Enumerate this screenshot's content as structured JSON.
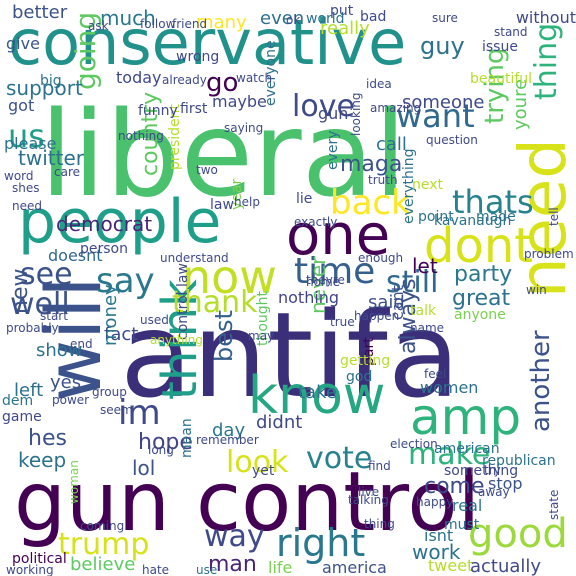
{
  "palette": {
    "dark_purple": "#440154",
    "indigo": "#3b528b",
    "teal": "#21918c",
    "green": "#5ec962",
    "yellow": "#fde725",
    "light_green": "#b5de2b"
  },
  "words": [
    {
      "text": "conservative",
      "color": "#21918c"
    },
    {
      "text": "liberal",
      "color": "#4ac16d"
    },
    {
      "text": "antifa",
      "color": "#3b2f7a"
    },
    {
      "text": "gun control",
      "color": "#440154"
    },
    {
      "text": "people",
      "color": "#1f9e89"
    },
    {
      "text": "will",
      "color": "#3b528b"
    },
    {
      "text": "one",
      "color": "#440154"
    },
    {
      "text": "dont",
      "color": "#d8e219"
    },
    {
      "text": "now",
      "color": "#c2df23"
    },
    {
      "text": "know",
      "color": "#26a784"
    },
    {
      "text": "think",
      "color": "#1f9e89"
    },
    {
      "text": "amp",
      "color": "#2eb37c"
    },
    {
      "text": "need",
      "color": "#d8e219"
    },
    {
      "text": "good",
      "color": "#9bd93c"
    },
    {
      "text": "right",
      "color": "#2a788e"
    },
    {
      "text": "time",
      "color": "#35608d"
    },
    {
      "text": "want",
      "color": "#30688e"
    },
    {
      "text": "love",
      "color": "#3e4a89"
    },
    {
      "text": "us",
      "color": "#1f9e89"
    },
    {
      "text": "back",
      "color": "#fde725"
    },
    {
      "text": "thats",
      "color": "#26828e"
    },
    {
      "text": "say",
      "color": "#2a788e"
    },
    {
      "text": "see",
      "color": "#3b528b"
    },
    {
      "text": "well",
      "color": "#3b528b"
    },
    {
      "text": "im",
      "color": "#3e4a89"
    },
    {
      "text": "thank",
      "color": "#b5de2b"
    },
    {
      "text": "still",
      "color": "#31688e"
    },
    {
      "text": "look",
      "color": "#d8e219"
    },
    {
      "text": "vote",
      "color": "#26828e"
    },
    {
      "text": "make",
      "color": "#2eb37c"
    },
    {
      "text": "way",
      "color": "#3e4a89"
    },
    {
      "text": "trump",
      "color": "#d8e219"
    },
    {
      "text": "thing",
      "color": "#2eb37c"
    },
    {
      "text": "going",
      "color": "#5ec962"
    },
    {
      "text": "go",
      "color": "#440154"
    },
    {
      "text": "new",
      "color": "#3b528b"
    },
    {
      "text": "hope",
      "color": "#414487"
    },
    {
      "text": "lol",
      "color": "#3b528b"
    },
    {
      "text": "hes",
      "color": "#3b528b"
    },
    {
      "text": "keep",
      "color": "#2c728e"
    },
    {
      "text": "come",
      "color": "#3e4a89"
    },
    {
      "text": "work",
      "color": "#2c728e"
    },
    {
      "text": "isnt",
      "color": "#2c728e"
    },
    {
      "text": "man",
      "color": "#482576"
    },
    {
      "text": "believe",
      "color": "#5ec962"
    },
    {
      "text": "america",
      "color": "#3b528b"
    },
    {
      "text": "life",
      "color": "#7ad151"
    },
    {
      "text": "tweet",
      "color": "#b5de2b"
    },
    {
      "text": "actually",
      "color": "#3e4a89"
    },
    {
      "text": "another",
      "color": "#3b528b"
    },
    {
      "text": "real",
      "color": "#2a788e"
    },
    {
      "text": "must",
      "color": "#2c728e"
    },
    {
      "text": "stop",
      "color": "#3b528b"
    },
    {
      "text": "day",
      "color": "#2a788e"
    },
    {
      "text": "best",
      "color": "#35608d"
    },
    {
      "text": "take",
      "color": "#2c728e"
    },
    {
      "text": "didnt",
      "color": "#3e4a89"
    },
    {
      "text": "always",
      "color": "#3b528b"
    },
    {
      "text": "women",
      "color": "#2c728e"
    },
    {
      "text": "party",
      "color": "#2a788e"
    },
    {
      "text": "great",
      "color": "#2c728e"
    },
    {
      "text": "said",
      "color": "#3b528b"
    },
    {
      "text": "never",
      "color": "#5ec962"
    },
    {
      "text": "cant",
      "color": "#3b528b"
    },
    {
      "text": "nothing",
      "color": "#414487"
    },
    {
      "text": "fact",
      "color": "#3e4a89"
    },
    {
      "text": "money",
      "color": "#2a788e"
    },
    {
      "text": "show",
      "color": "#2c728e"
    },
    {
      "text": "yes",
      "color": "#3b528b"
    },
    {
      "text": "left",
      "color": "#2c728e"
    },
    {
      "text": "doesnt",
      "color": "#31688e"
    },
    {
      "text": "person",
      "color": "#3e4a89"
    },
    {
      "text": "democrat",
      "color": "#482576"
    },
    {
      "text": "country",
      "color": "#5ec962"
    },
    {
      "text": "president",
      "color": "#b5de2b"
    },
    {
      "text": "law",
      "color": "#3e4a89"
    },
    {
      "text": "year",
      "color": "#7ad151"
    },
    {
      "text": "let",
      "color": "#440154"
    },
    {
      "text": "maga",
      "color": "#3b528b"
    },
    {
      "text": "call",
      "color": "#2c728e"
    },
    {
      "text": "trying",
      "color": "#5ec962"
    },
    {
      "text": "youre",
      "color": "#5ec962"
    },
    {
      "text": "gun",
      "color": "#3e4a89"
    },
    {
      "text": "guy",
      "color": "#2c728e"
    },
    {
      "text": "someone",
      "color": "#3e4a89"
    },
    {
      "text": "really",
      "color": "#b5de2b"
    },
    {
      "text": "even",
      "color": "#2c728e"
    },
    {
      "text": "many",
      "color": "#fde725"
    },
    {
      "text": "much",
      "color": "#2a788e"
    },
    {
      "text": "better",
      "color": "#3b528b"
    },
    {
      "text": "support",
      "color": "#2c728e"
    },
    {
      "text": "got",
      "color": "#3b528b"
    },
    {
      "text": "please",
      "color": "#2c728e"
    },
    {
      "text": "twitter",
      "color": "#2c728e"
    },
    {
      "text": "give",
      "color": "#3b528b"
    },
    {
      "text": "big",
      "color": "#2c728e"
    },
    {
      "text": "today",
      "color": "#3e4a89"
    },
    {
      "text": "maybe",
      "color": "#3e4a89"
    },
    {
      "text": "wrong",
      "color": "#3e4a89"
    },
    {
      "text": "funny",
      "color": "#3e4a89"
    },
    {
      "text": "first",
      "color": "#3e4a89"
    },
    {
      "text": "beautiful",
      "color": "#b5de2b"
    },
    {
      "text": "issue",
      "color": "#3e4a89"
    },
    {
      "text": "put",
      "color": "#3e4a89"
    },
    {
      "text": "world",
      "color": "#2c728e"
    },
    {
      "text": "bad",
      "color": "#3e4a89"
    },
    {
      "text": "without",
      "color": "#3e4a89"
    },
    {
      "text": "lie",
      "color": "#3e4a89"
    },
    {
      "text": "every",
      "color": "#2c728e"
    },
    {
      "text": "everyone",
      "color": "#2c728e"
    },
    {
      "text": "everything",
      "color": "#2c728e"
    },
    {
      "text": "kavanaugh",
      "color": "#2c728e"
    },
    {
      "text": "made",
      "color": "#2c728e"
    },
    {
      "text": "anyone",
      "color": "#7ad151"
    },
    {
      "text": "point",
      "color": "#2c728e"
    },
    {
      "text": "mean",
      "color": "#2c728e"
    },
    {
      "text": "american",
      "color": "#2c728e"
    },
    {
      "text": "something",
      "color": "#3e4a89"
    },
    {
      "text": "republican",
      "color": "#2c728e"
    },
    {
      "text": "yet",
      "color": "#3e4a89"
    },
    {
      "text": "part",
      "color": "#440154"
    },
    {
      "text": "thought",
      "color": "#5ec962"
    },
    {
      "text": "getting",
      "color": "#b5de2b"
    },
    {
      "text": "god",
      "color": "#2c728e"
    },
    {
      "text": "next",
      "color": "#b5de2b"
    },
    {
      "text": "talk",
      "color": "#b5de2b"
    },
    {
      "text": "dem",
      "color": "#2c728e"
    },
    {
      "text": "game",
      "color": "#3e4a89"
    },
    {
      "text": "woman",
      "color": "#7ad151"
    },
    {
      "text": "control law",
      "color": "#3e4a89"
    },
    {
      "text": "anything",
      "color": "#b5de2b"
    },
    {
      "text": "talking",
      "color": "#3e4a89"
    },
    {
      "text": "coming",
      "color": "#3e4a89"
    },
    {
      "text": "political",
      "color": "#440154"
    },
    {
      "text": "use",
      "color": "#2c728e"
    },
    {
      "text": "hate",
      "color": "#3e4a89"
    },
    {
      "text": "working",
      "color": "#3e4a89"
    },
    {
      "text": "nothing",
      "color": "#3e4a89"
    },
    {
      "text": "saying",
      "color": "#3e4a89"
    },
    {
      "text": "care",
      "color": "#3e4a89"
    },
    {
      "text": "shes",
      "color": "#3e4a89"
    },
    {
      "text": "word",
      "color": "#3e4a89"
    },
    {
      "text": "two",
      "color": "#3e4a89"
    },
    {
      "text": "help",
      "color": "#3e4a89"
    },
    {
      "text": "truth",
      "color": "#3e4a89"
    },
    {
      "text": "question",
      "color": "#3e4a89"
    },
    {
      "text": "looking",
      "color": "#3e4a89"
    },
    {
      "text": "idea",
      "color": "#3e4a89"
    },
    {
      "text": "stand",
      "color": "#3e4a89"
    },
    {
      "text": "ask",
      "color": "#3e4a89"
    },
    {
      "text": "follow",
      "color": "#3e4a89"
    },
    {
      "text": "friend",
      "color": "#3e4a89"
    },
    {
      "text": "ok",
      "color": "#3e4a89"
    },
    {
      "text": "sure",
      "color": "#3e4a89"
    },
    {
      "text": "already",
      "color": "#3e4a89"
    },
    {
      "text": "watch",
      "color": "#3e4a89"
    },
    {
      "text": "true",
      "color": "#3e4a89"
    },
    {
      "text": "happen",
      "color": "#3e4a89"
    },
    {
      "text": "name",
      "color": "#3e4a89"
    },
    {
      "text": "election",
      "color": "#3e4a89"
    },
    {
      "text": "live",
      "color": "#3e4a89"
    },
    {
      "text": "find",
      "color": "#3e4a89"
    },
    {
      "text": "away",
      "color": "#3e4a89"
    },
    {
      "text": "try",
      "color": "#3e4a89"
    },
    {
      "text": "happy",
      "color": "#3e4a89"
    },
    {
      "text": "remember",
      "color": "#3e4a89"
    },
    {
      "text": "start",
      "color": "#3e4a89"
    },
    {
      "text": "probably",
      "color": "#3e4a89"
    },
    {
      "text": "power",
      "color": "#3e4a89"
    },
    {
      "text": "group",
      "color": "#3e4a89"
    },
    {
      "text": "seem",
      "color": "#3e4a89"
    },
    {
      "text": "end",
      "color": "#3e4a89"
    },
    {
      "text": "long",
      "color": "#3e4a89"
    },
    {
      "text": "used",
      "color": "#3e4a89"
    },
    {
      "text": "enough",
      "color": "#3e4a89"
    },
    {
      "text": "understand",
      "color": "#3e4a89"
    },
    {
      "text": "home",
      "color": "#3e4a89"
    },
    {
      "text": "feel",
      "color": "#3e4a89"
    },
    {
      "text": "may",
      "color": "#3e4a89"
    },
    {
      "text": "win",
      "color": "#3e4a89"
    },
    {
      "text": "tell",
      "color": "#3e4a89"
    },
    {
      "text": "exactly",
      "color": "#3e4a89"
    },
    {
      "text": "theyre",
      "color": "#3e4a89"
    },
    {
      "text": "need",
      "color": "#3e4a89"
    },
    {
      "text": "problem",
      "color": "#3e4a89"
    },
    {
      "text": "state",
      "color": "#3e4a89"
    },
    {
      "text": "thing",
      "color": "#3e4a89"
    },
    {
      "text": "amazing",
      "color": "#3e4a89"
    },
    {
      "text": "little",
      "color": "#3e4a89"
    }
  ]
}
